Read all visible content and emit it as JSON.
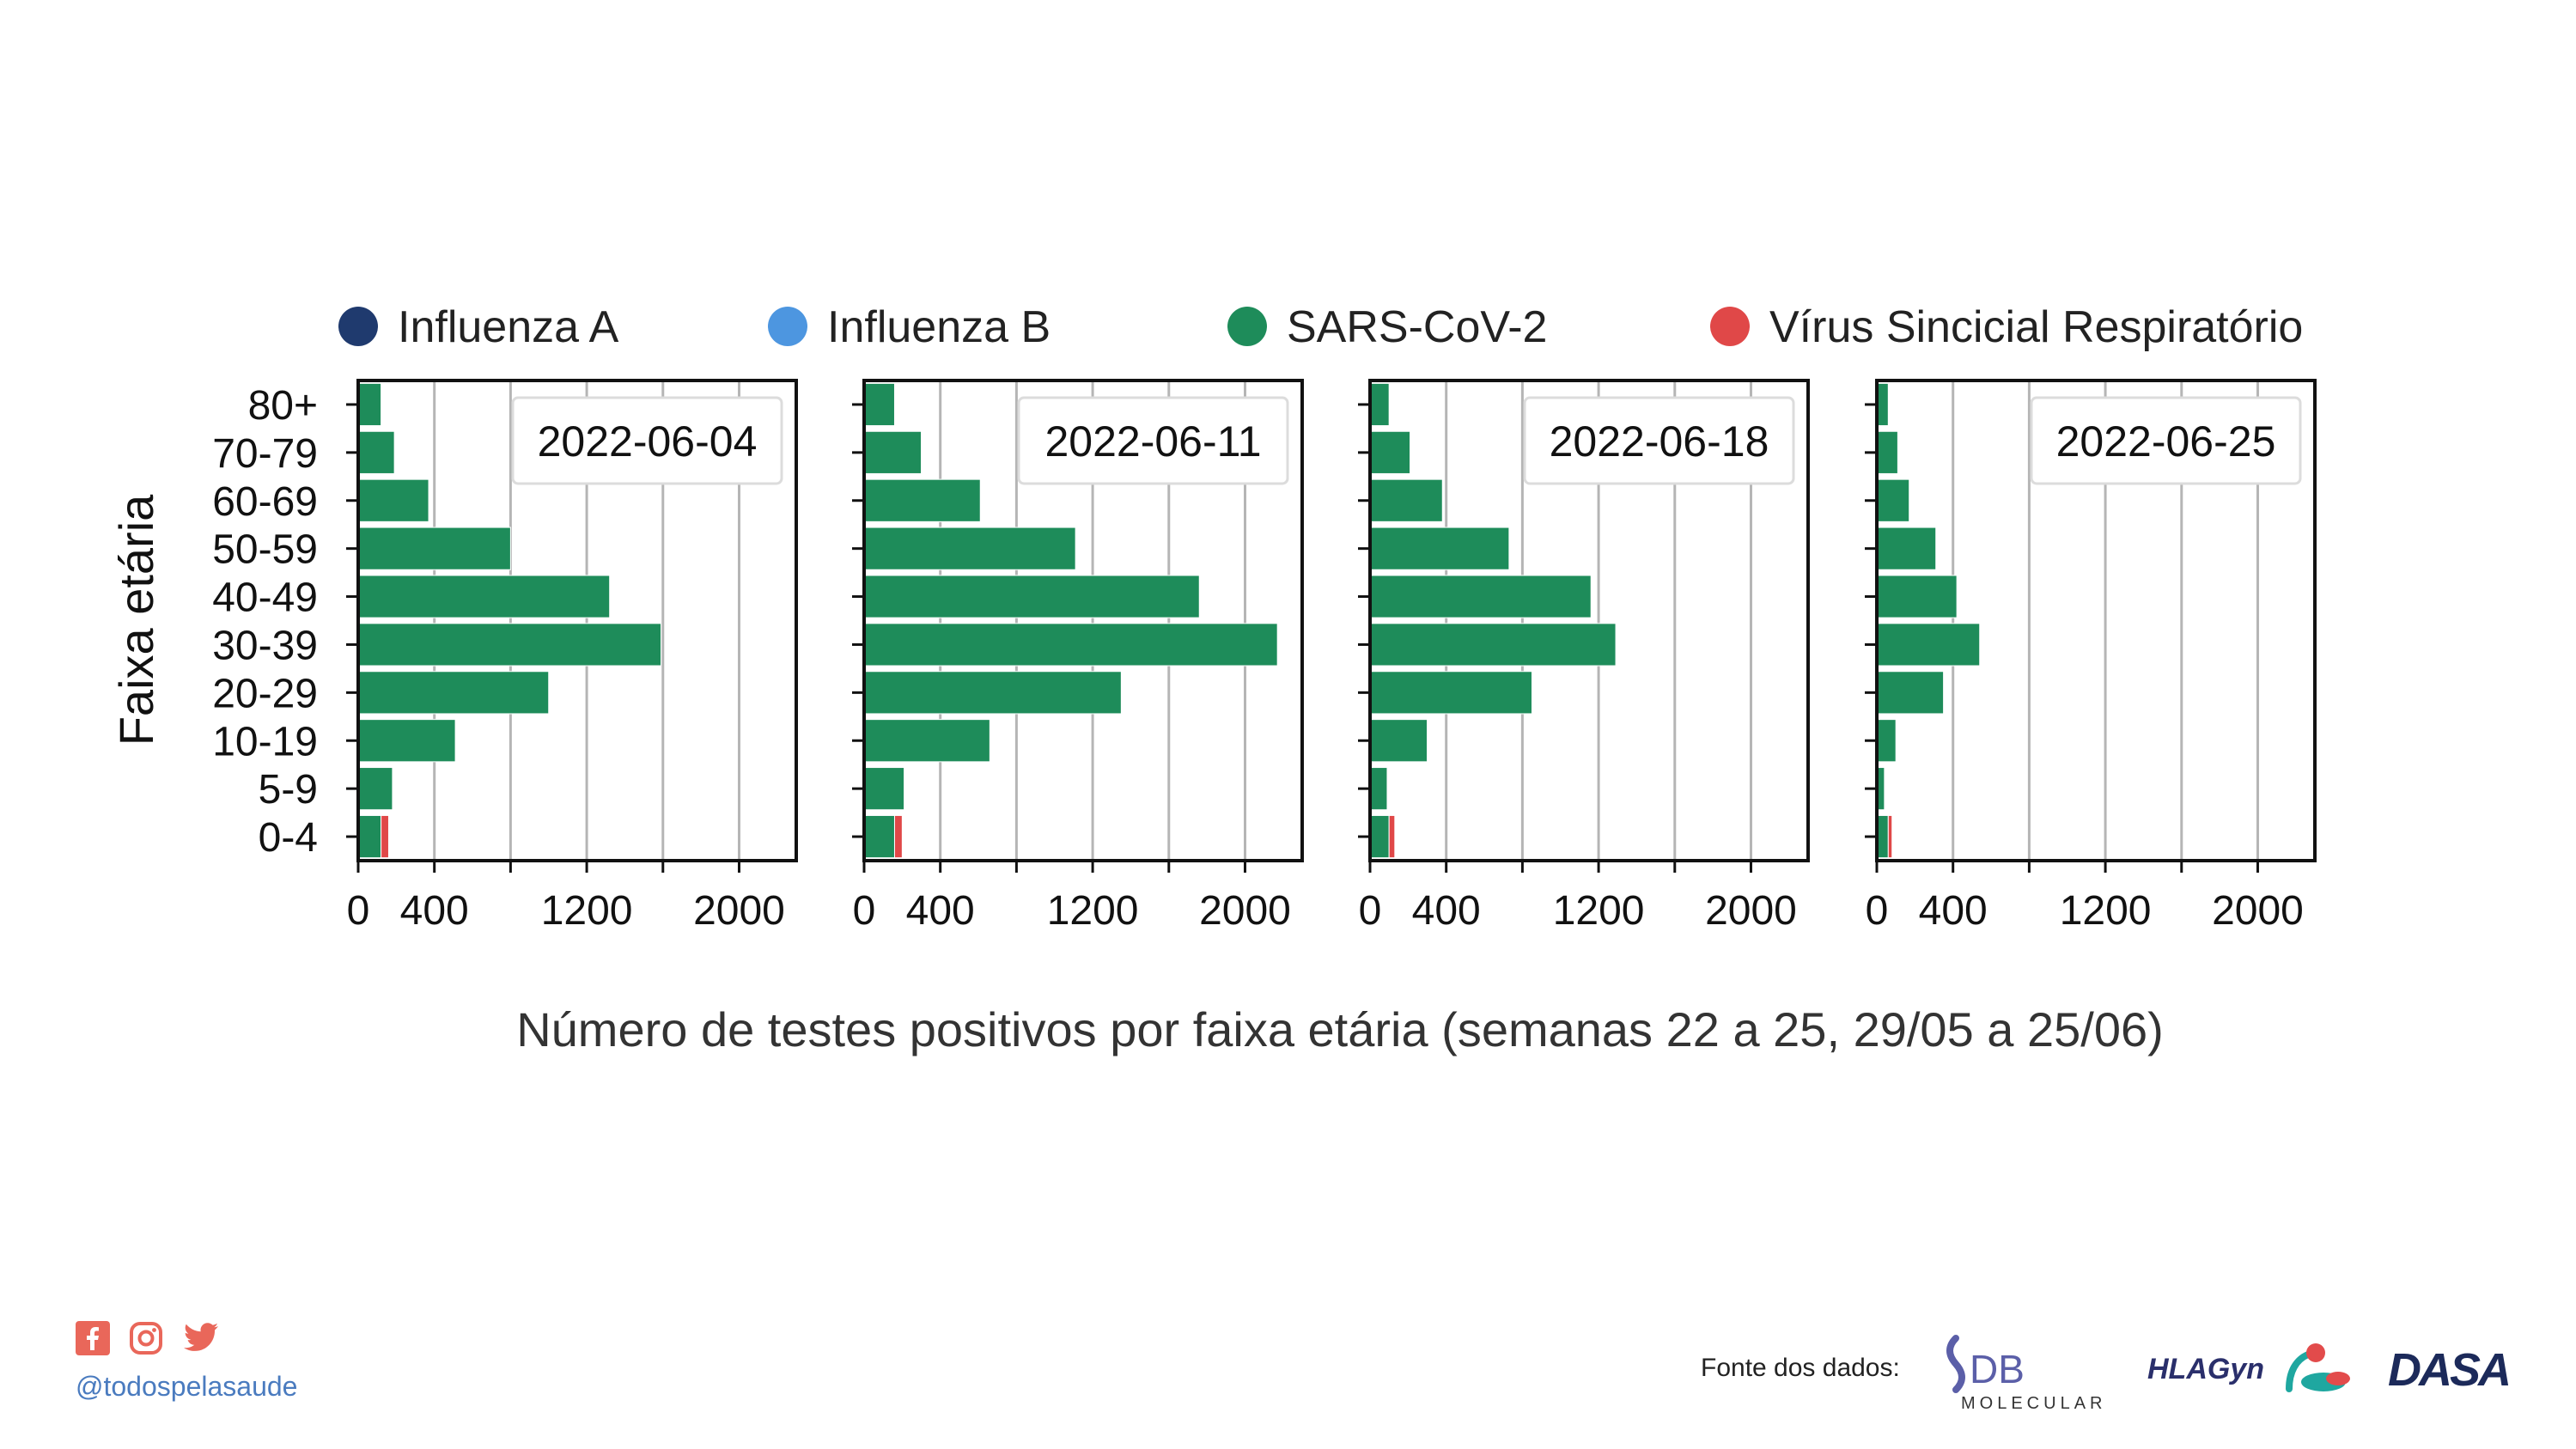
{
  "legend": [
    {
      "label": "Influenza A",
      "color": "#1f3a6e"
    },
    {
      "label": "Influenza B",
      "color": "#4d96e0"
    },
    {
      "label": "SARS-CoV-2",
      "color": "#1e8c5a"
    },
    {
      "label": "Vírus Sincicial Respiratório",
      "color": "#e04848"
    }
  ],
  "caption": "Número de testes positivos por faixa etária (semanas 22 a 25, 29/05 a 25/06)",
  "footer": {
    "handle": "@todospelasaude",
    "source_label": "Fonte dos dados:",
    "logos": [
      {
        "name": "DB Molecular",
        "text_main": "DB",
        "text_sub": "MOLECULAR"
      },
      {
        "name": "HLAGyn",
        "text_main": "HLAGyn"
      },
      {
        "name": "Dasa",
        "text_main": "DASA"
      }
    ],
    "social_icons": [
      "facebook-icon",
      "instagram-icon",
      "twitter-icon"
    ]
  },
  "chart_data": {
    "type": "bar",
    "orientation": "horizontal",
    "stacked": true,
    "ylabel": "Faixa etária",
    "categories": [
      "80+",
      "70-79",
      "60-69",
      "50-59",
      "40-49",
      "30-39",
      "20-29",
      "10-19",
      "5-9",
      "0-4"
    ],
    "xticks": [
      0,
      400,
      1200,
      2000
    ],
    "xlim": [
      0,
      2300
    ],
    "grid": "vertical",
    "legend_position": "top",
    "panels": [
      {
        "date": "2022-06-04",
        "series": [
          {
            "name": "Influenza A",
            "values": [
              0,
              0,
              0,
              0,
              0,
              0,
              0,
              0,
              0,
              0
            ]
          },
          {
            "name": "Influenza B",
            "values": [
              0,
              0,
              0,
              0,
              0,
              0,
              0,
              0,
              0,
              0
            ]
          },
          {
            "name": "SARS-CoV-2",
            "values": [
              120,
              190,
              370,
              800,
              1320,
              1590,
              1000,
              510,
              180,
              120
            ]
          },
          {
            "name": "Vírus Sincicial Respiratório",
            "values": [
              0,
              0,
              0,
              0,
              0,
              0,
              0,
              0,
              0,
              40
            ]
          }
        ]
      },
      {
        "date": "2022-06-11",
        "series": [
          {
            "name": "Influenza A",
            "values": [
              0,
              0,
              0,
              0,
              0,
              0,
              0,
              0,
              0,
              0
            ]
          },
          {
            "name": "Influenza B",
            "values": [
              0,
              0,
              0,
              0,
              0,
              0,
              0,
              0,
              0,
              0
            ]
          },
          {
            "name": "SARS-CoV-2",
            "values": [
              160,
              300,
              610,
              1110,
              1760,
              2170,
              1350,
              660,
              210,
              160
            ]
          },
          {
            "name": "Vírus Sincicial Respiratório",
            "values": [
              0,
              0,
              0,
              0,
              0,
              0,
              0,
              0,
              0,
              40
            ]
          }
        ]
      },
      {
        "date": "2022-06-18",
        "series": [
          {
            "name": "Influenza A",
            "values": [
              0,
              0,
              0,
              0,
              0,
              0,
              0,
              0,
              0,
              0
            ]
          },
          {
            "name": "Influenza B",
            "values": [
              0,
              0,
              0,
              0,
              0,
              0,
              0,
              0,
              0,
              0
            ]
          },
          {
            "name": "SARS-CoV-2",
            "values": [
              100,
              210,
              380,
              730,
              1160,
              1290,
              850,
              300,
              90,
              100
            ]
          },
          {
            "name": "Vírus Sincicial Respiratório",
            "values": [
              0,
              0,
              0,
              0,
              0,
              0,
              0,
              0,
              0,
              30
            ]
          }
        ]
      },
      {
        "date": "2022-06-25",
        "series": [
          {
            "name": "Influenza A",
            "values": [
              0,
              0,
              0,
              0,
              0,
              0,
              0,
              0,
              0,
              0
            ]
          },
          {
            "name": "Influenza B",
            "values": [
              0,
              0,
              0,
              0,
              0,
              0,
              0,
              0,
              0,
              0
            ]
          },
          {
            "name": "SARS-CoV-2",
            "values": [
              60,
              110,
              170,
              310,
              420,
              540,
              350,
              100,
              40,
              60
            ]
          },
          {
            "name": "Vírus Sincicial Respiratório",
            "values": [
              0,
              0,
              0,
              0,
              0,
              0,
              0,
              0,
              0,
              20
            ]
          }
        ]
      }
    ]
  }
}
